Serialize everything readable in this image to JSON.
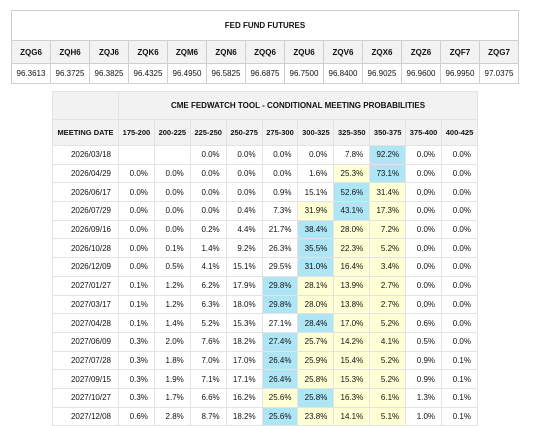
{
  "futures": {
    "title": "FED FUND FUTURES",
    "codes": [
      "ZQG6",
      "ZQH6",
      "ZQJ6",
      "ZQK6",
      "ZQM6",
      "ZQN6",
      "ZQQ6",
      "ZQU6",
      "ZQV6",
      "ZQX6",
      "ZQZ6",
      "ZQF7",
      "ZQG7"
    ],
    "prices": [
      "96.3613",
      "96.3725",
      "96.3825",
      "96.4325",
      "96.4950",
      "96.5825",
      "96.6875",
      "96.7500",
      "96.8400",
      "96.9025",
      "96.9600",
      "96.9950",
      "97.0375"
    ]
  },
  "fedwatch": {
    "title": "CME FEDWATCH TOOL - CONDITIONAL MEETING PROBABILITIES",
    "date_header": "MEETING DATE",
    "ranges": [
      "175-200",
      "200-225",
      "225-250",
      "250-275",
      "275-300",
      "300-325",
      "325-350",
      "350-375",
      "375-400",
      "400-425"
    ],
    "colors": {
      "highlight_yellow": "#ffffd6",
      "highlight_blue": "#aee6f6"
    },
    "rows": [
      {
        "date": "2026/03/18",
        "values": [
          "",
          "",
          "0.0%",
          "0.0%",
          "0.0%",
          "0.0%",
          "7.8%",
          "92.2%",
          "0.0%",
          "0.0%"
        ],
        "hl": [
          "",
          "",
          "",
          "",
          "",
          "",
          "",
          "b",
          "",
          ""
        ]
      },
      {
        "date": "2026/04/29",
        "values": [
          "0.0%",
          "0.0%",
          "0.0%",
          "0.0%",
          "0.0%",
          "1.6%",
          "25.3%",
          "73.1%",
          "0.0%",
          "0.0%"
        ],
        "hl": [
          "",
          "",
          "",
          "",
          "",
          "",
          "y",
          "b",
          "",
          ""
        ]
      },
      {
        "date": "2026/06/17",
        "values": [
          "0.0%",
          "0.0%",
          "0.0%",
          "0.0%",
          "0.9%",
          "15.1%",
          "52.6%",
          "31.4%",
          "0.0%",
          "0.0%"
        ],
        "hl": [
          "",
          "",
          "",
          "",
          "",
          "",
          "b",
          "y",
          "",
          ""
        ]
      },
      {
        "date": "2026/07/29",
        "values": [
          "0.0%",
          "0.0%",
          "0.0%",
          "0.4%",
          "7.3%",
          "31.9%",
          "43.1%",
          "17.3%",
          "0.0%",
          "0.0%"
        ],
        "hl": [
          "",
          "",
          "",
          "",
          "",
          "y",
          "b",
          "y",
          "",
          ""
        ]
      },
      {
        "date": "2026/09/16",
        "values": [
          "0.0%",
          "0.0%",
          "0.2%",
          "4.4%",
          "21.7%",
          "38.4%",
          "28.0%",
          "7.2%",
          "0.0%",
          "0.0%"
        ],
        "hl": [
          "",
          "",
          "",
          "",
          "",
          "b",
          "y",
          "y",
          "",
          ""
        ]
      },
      {
        "date": "2026/10/28",
        "values": [
          "0.0%",
          "0.1%",
          "1.4%",
          "9.2%",
          "26.3%",
          "35.5%",
          "22.3%",
          "5.2%",
          "0.0%",
          "0.0%"
        ],
        "hl": [
          "",
          "",
          "",
          "",
          "",
          "b",
          "y",
          "y",
          "",
          ""
        ]
      },
      {
        "date": "2026/12/09",
        "values": [
          "0.0%",
          "0.5%",
          "4.1%",
          "15.1%",
          "29.5%",
          "31.0%",
          "16.4%",
          "3.4%",
          "0.0%",
          "0.0%"
        ],
        "hl": [
          "",
          "",
          "",
          "",
          "",
          "b",
          "y",
          "y",
          "",
          ""
        ]
      },
      {
        "date": "2027/01/27",
        "values": [
          "0.1%",
          "1.2%",
          "6.2%",
          "17.9%",
          "29.8%",
          "28.1%",
          "13.9%",
          "2.7%",
          "0.0%",
          "0.0%"
        ],
        "hl": [
          "",
          "",
          "",
          "",
          "b",
          "y",
          "y",
          "y",
          "",
          ""
        ]
      },
      {
        "date": "2027/03/17",
        "values": [
          "0.1%",
          "1.2%",
          "6.3%",
          "18.0%",
          "29.8%",
          "28.0%",
          "13.8%",
          "2.7%",
          "0.0%",
          "0.0%"
        ],
        "hl": [
          "",
          "",
          "",
          "",
          "b",
          "y",
          "y",
          "y",
          "",
          ""
        ]
      },
      {
        "date": "2027/04/28",
        "values": [
          "0.1%",
          "1.4%",
          "5.2%",
          "15.3%",
          "27.1%",
          "28.4%",
          "17.0%",
          "5.2%",
          "0.6%",
          "0.0%"
        ],
        "hl": [
          "",
          "",
          "",
          "",
          "",
          "b",
          "y",
          "y",
          "",
          ""
        ]
      },
      {
        "date": "2027/06/09",
        "values": [
          "0.3%",
          "2.0%",
          "7.6%",
          "18.2%",
          "27.4%",
          "25.7%",
          "14.2%",
          "4.1%",
          "0.5%",
          "0.0%"
        ],
        "hl": [
          "",
          "",
          "",
          "",
          "b",
          "y",
          "y",
          "y",
          "",
          ""
        ]
      },
      {
        "date": "2027/07/28",
        "values": [
          "0.3%",
          "1.8%",
          "7.0%",
          "17.0%",
          "26.4%",
          "25.9%",
          "15.4%",
          "5.2%",
          "0.9%",
          "0.1%"
        ],
        "hl": [
          "",
          "",
          "",
          "",
          "b",
          "y",
          "y",
          "y",
          "",
          ""
        ]
      },
      {
        "date": "2027/09/15",
        "values": [
          "0.3%",
          "1.9%",
          "7.1%",
          "17.1%",
          "26.4%",
          "25.8%",
          "15.3%",
          "5.2%",
          "0.9%",
          "0.1%"
        ],
        "hl": [
          "",
          "",
          "",
          "",
          "b",
          "y",
          "y",
          "y",
          "",
          ""
        ]
      },
      {
        "date": "2027/10/27",
        "values": [
          "0.3%",
          "1.7%",
          "6.6%",
          "16.2%",
          "25.6%",
          "25.8%",
          "16.3%",
          "6.1%",
          "1.3%",
          "0.1%"
        ],
        "hl": [
          "",
          "",
          "",
          "",
          "y",
          "b",
          "y",
          "y",
          "",
          ""
        ]
      },
      {
        "date": "2027/12/08",
        "values": [
          "0.6%",
          "2.8%",
          "8.7%",
          "18.2%",
          "25.6%",
          "23.8%",
          "14.1%",
          "5.1%",
          "1.0%",
          "0.1%"
        ],
        "hl": [
          "",
          "",
          "",
          "",
          "b",
          "y",
          "y",
          "y",
          "",
          ""
        ]
      }
    ]
  }
}
